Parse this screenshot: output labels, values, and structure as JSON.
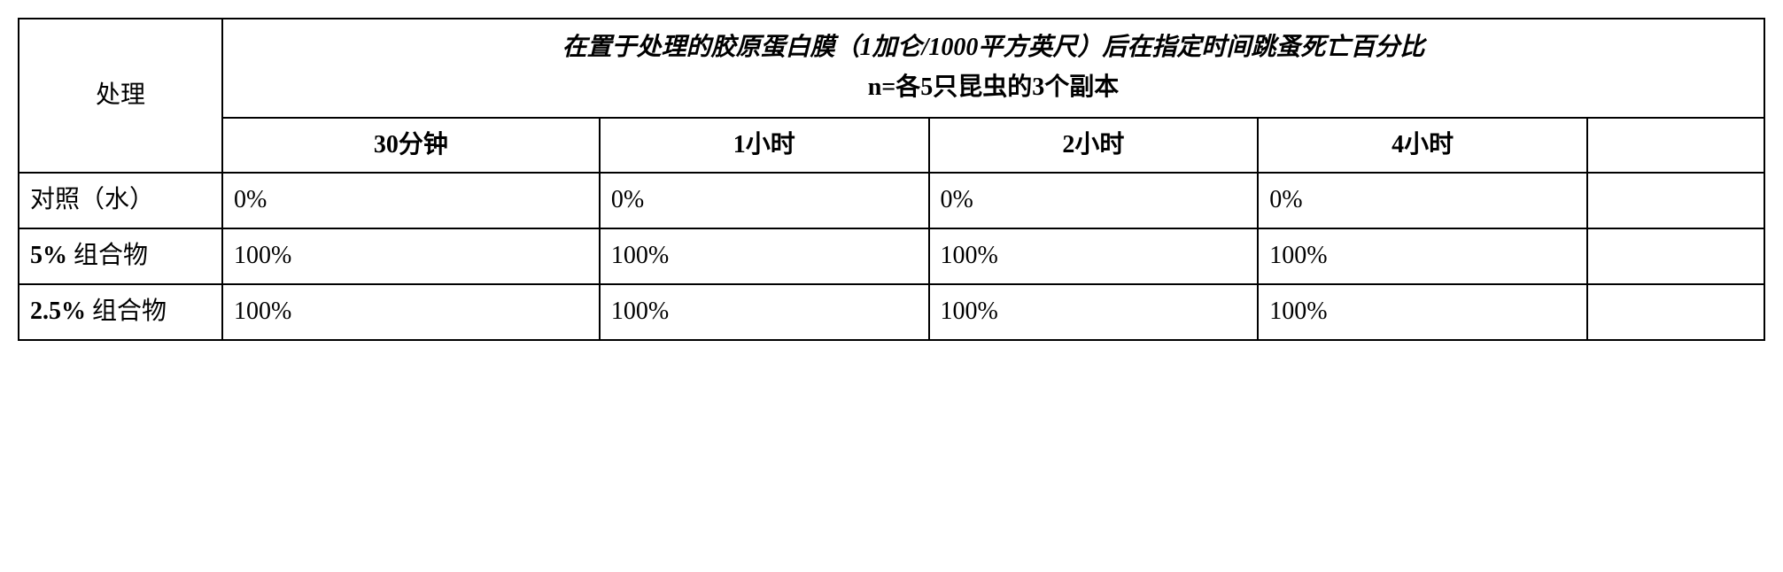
{
  "table": {
    "header": {
      "treatment_label": "处理",
      "description_line1": "在置于处理的胶原蛋白膜（1加仑/1000平方英尺）后在指定时间跳蚤死亡百分比",
      "description_line2": "n=各5只昆虫的3个副本"
    },
    "time_headers": {
      "t30min": "30分钟",
      "t1h": "1小时",
      "t2h": "2小时",
      "t4h": "4小时"
    },
    "rows": {
      "control": {
        "label": "对照（水）",
        "v30min": "0%",
        "v1h": "0%",
        "v2h": "0%",
        "v4h": "0%"
      },
      "comp5": {
        "label_percent": "5% ",
        "label_text": "组合物",
        "v30min": "100%",
        "v1h": "100%",
        "v2h": "100%",
        "v4h": "100%"
      },
      "comp25": {
        "label_percent": "2.5% ",
        "label_text": "组合物",
        "v30min": "100%",
        "v1h": "100%",
        "v2h": "100%",
        "v4h": "100%"
      }
    }
  }
}
